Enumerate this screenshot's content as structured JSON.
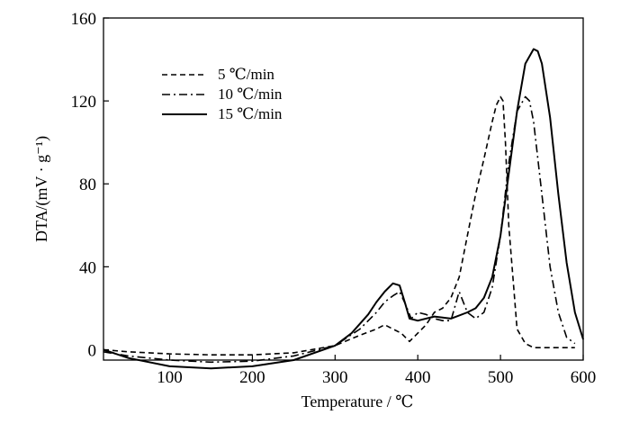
{
  "chart_data": {
    "type": "line",
    "xlabel": "Temperature / ℃",
    "ylabel": "DTA/(mV · g⁻¹)",
    "xlim": [
      20,
      600
    ],
    "ylim": [
      -5,
      160
    ],
    "xticks": [
      100,
      200,
      300,
      400,
      500,
      600
    ],
    "yticks": [
      0,
      40,
      80,
      120,
      160
    ],
    "grid": false,
    "legend_position": "top-left",
    "series": [
      {
        "name": "5 ℃/min",
        "style": "dashed",
        "x": [
          20,
          50,
          100,
          150,
          200,
          250,
          300,
          330,
          350,
          360,
          370,
          380,
          385,
          390,
          395,
          400,
          410,
          420,
          430,
          440,
          450,
          460,
          470,
          480,
          490,
          495,
          500,
          503,
          506,
          510,
          520,
          530,
          540,
          560,
          580,
          590
        ],
        "y": [
          0,
          -1,
          -2,
          -2.5,
          -2.5,
          -1.5,
          2,
          7,
          10,
          12,
          10,
          8,
          6,
          4,
          6,
          8,
          12,
          18,
          20,
          25,
          35,
          55,
          75,
          92,
          110,
          118,
          122,
          120,
          100,
          60,
          10,
          3,
          1,
          1,
          1,
          1
        ]
      },
      {
        "name": "10 ℃/min",
        "style": "dashdot",
        "x": [
          20,
          50,
          100,
          150,
          200,
          250,
          300,
          330,
          350,
          360,
          370,
          378,
          385,
          392,
          400,
          410,
          420,
          430,
          440,
          450,
          460,
          470,
          480,
          490,
          500,
          510,
          520,
          530,
          535,
          540,
          550,
          560,
          570,
          580,
          590
        ],
        "y": [
          -1,
          -3,
          -5,
          -6,
          -5.5,
          -3,
          2,
          10,
          18,
          23,
          26,
          28,
          22,
          15,
          18,
          17,
          15,
          14,
          14,
          28,
          18,
          15,
          18,
          30,
          55,
          90,
          115,
          122,
          120,
          110,
          75,
          40,
          18,
          6,
          3
        ]
      },
      {
        "name": "15 ℃/min",
        "style": "solid",
        "x": [
          20,
          50,
          100,
          150,
          200,
          250,
          300,
          320,
          340,
          350,
          360,
          370,
          378,
          385,
          390,
          400,
          420,
          440,
          460,
          470,
          480,
          490,
          500,
          510,
          520,
          530,
          540,
          545,
          550,
          560,
          570,
          580,
          590,
          600
        ],
        "y": [
          0,
          -4,
          -8,
          -9,
          -8,
          -5,
          2,
          8,
          17,
          23,
          28,
          32,
          31,
          22,
          15,
          14,
          16,
          15,
          18,
          20,
          25,
          35,
          55,
          85,
          115,
          138,
          145,
          144,
          138,
          112,
          75,
          42,
          18,
          5
        ]
      }
    ]
  }
}
